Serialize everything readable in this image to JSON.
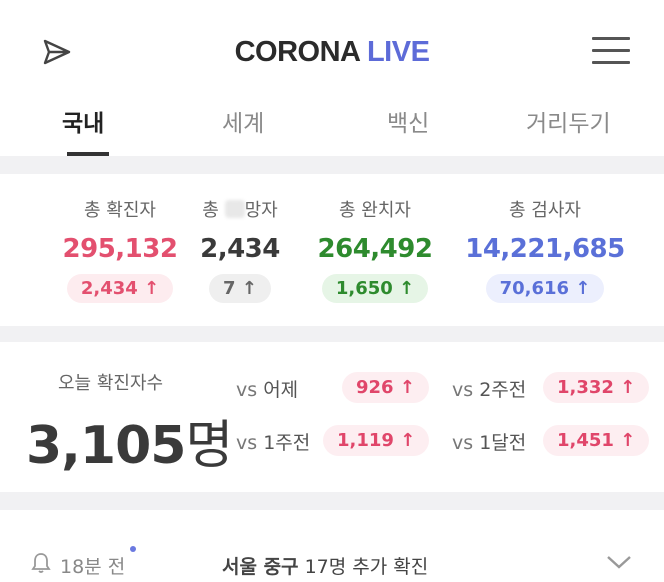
{
  "header": {
    "brand_part1": "CORONA",
    "brand_part2": "LIVE",
    "brand_color": "#5d6bd8"
  },
  "tabs": [
    {
      "label": "국내",
      "active": true
    },
    {
      "label": "세계",
      "active": false
    },
    {
      "label": "백신",
      "active": false
    },
    {
      "label": "거리두기",
      "active": false
    }
  ],
  "stats": [
    {
      "label": "총 확진자",
      "value": "295,132",
      "delta": "2,434",
      "arrow": "↑",
      "color": "#e3506f",
      "pill_bg": "#fdecef"
    },
    {
      "label_pre": "총",
      "label_post": "망자",
      "value": "2,434",
      "delta": "7",
      "arrow": "↑",
      "color": "#3a3a3a",
      "pill_bg": "#efefef",
      "pill_color": "#666666"
    },
    {
      "label": "총 완치자",
      "value": "264,492",
      "delta": "1,650",
      "arrow": "↑",
      "color": "#2e8b2e",
      "pill_bg": "#e6f5e6"
    },
    {
      "label": "총 검사자",
      "value": "14,221,685",
      "delta": "70,616",
      "arrow": "↑",
      "color": "#5a70d8",
      "pill_bg": "#eceffd"
    }
  ],
  "today": {
    "label": "오늘 확진자수",
    "count": "3,105",
    "unit": "명",
    "comparisons": [
      {
        "vs": "vs",
        "label": "어제",
        "value": "926",
        "arrow": "↑"
      },
      {
        "vs": "vs",
        "label": "2주전",
        "value": "1,332",
        "arrow": "↑"
      },
      {
        "vs": "vs",
        "label": "1주전",
        "value": "1,119",
        "arrow": "↑"
      },
      {
        "vs": "vs",
        "label": "1달전",
        "value": "1,451",
        "arrow": "↑"
      }
    ]
  },
  "news": {
    "time": "18분 전",
    "location": "서울 중구",
    "message": "17명 추가 확진"
  }
}
